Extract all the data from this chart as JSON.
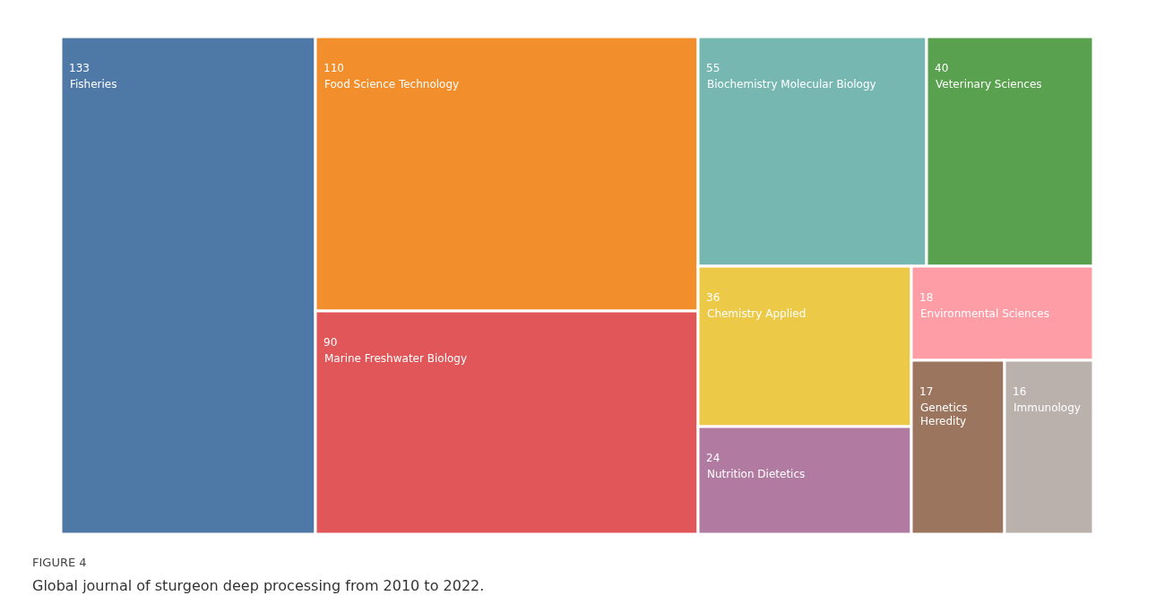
{
  "chart_data": {
    "type": "other",
    "title": "FIGURE 4",
    "categories": [
      "Fisheries",
      "Food Science Technology",
      "Marine Freshwater Biology",
      "Biochemistry Molecular Biology",
      "Veterinary Sciences",
      "Chemistry Applied",
      "Nutrition Dietetics",
      "Environmental Sciences",
      "Genetics Heredity",
      "Immunology"
    ],
    "values": [
      133,
      110,
      90,
      55,
      40,
      36,
      24,
      18,
      17,
      16
    ],
    "colors": [
      "#4e79a7",
      "#f28e2b",
      "#e15759",
      "#76b7b2",
      "#59a14f",
      "#edc948",
      "#b07aa1",
      "#ff9da7",
      "#9c755f",
      "#bab0ac"
    ],
    "data_labels": true,
    "annotations": [
      "Global journal of sturgeon deep processing from 2010 to 2022."
    ]
  }
}
